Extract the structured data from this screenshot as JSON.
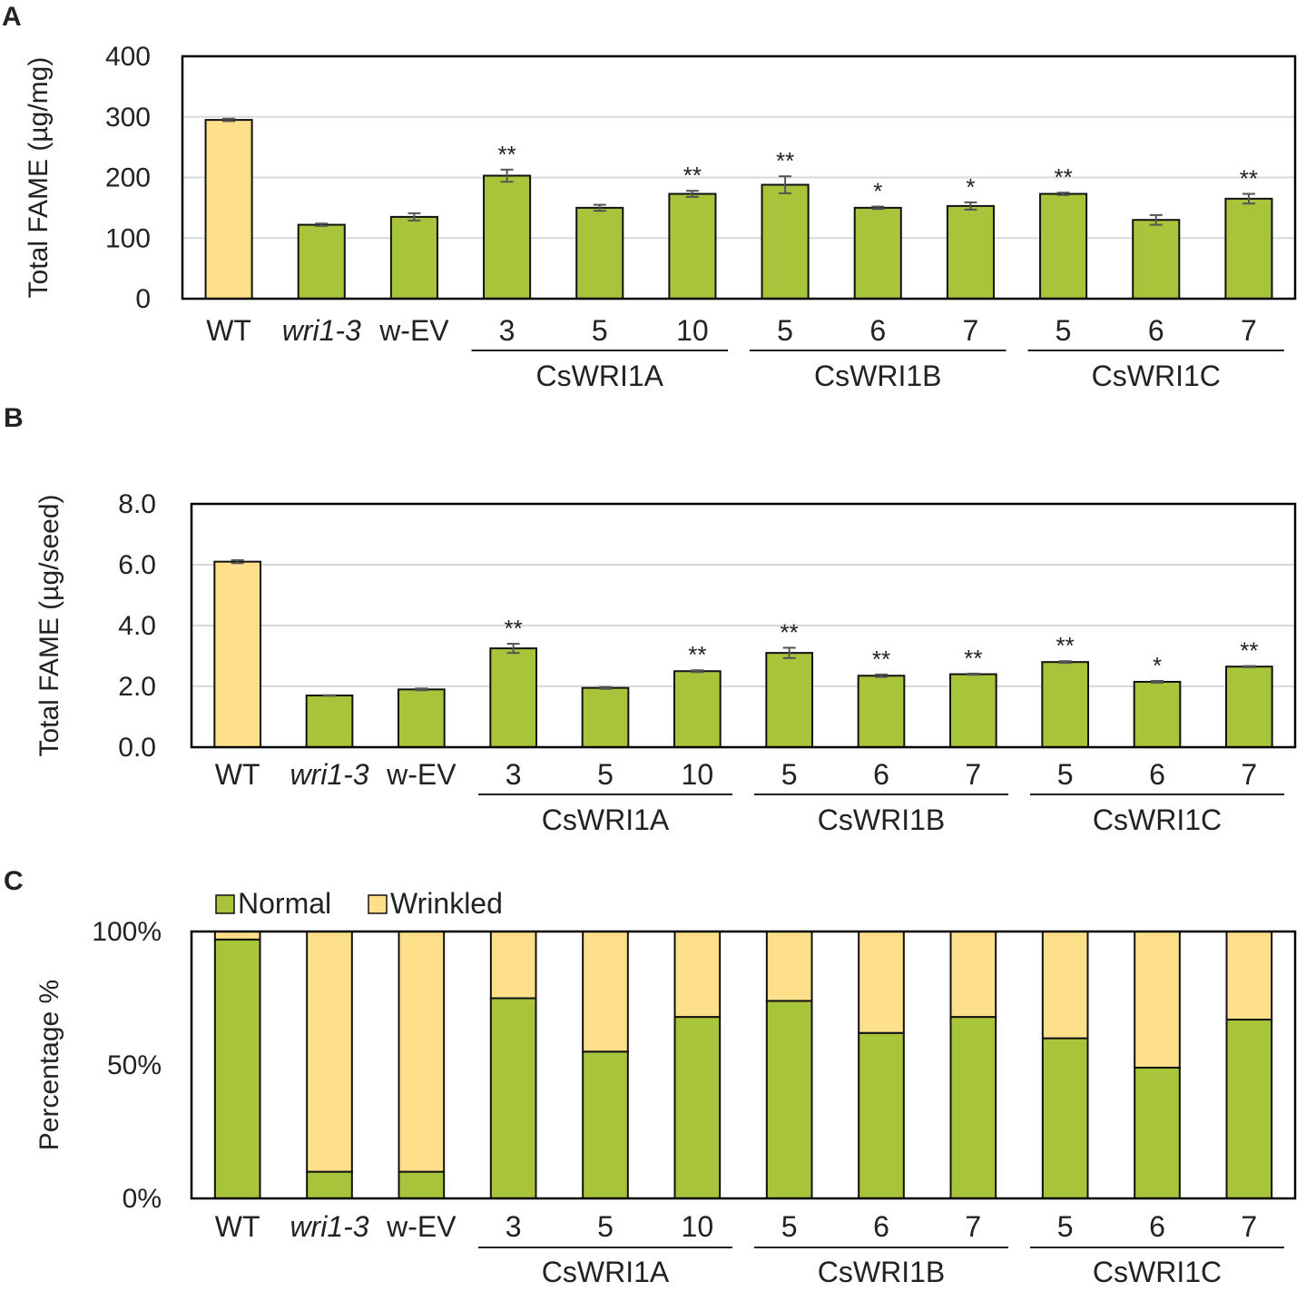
{
  "colors": {
    "green": "#a8c43a",
    "yellow": "#ffe08a",
    "grid": "#d9d9d9",
    "axis": "#000000",
    "error": "#555555"
  },
  "categories": [
    "WT",
    "wri1-3",
    "w-EV",
    "3",
    "5",
    "10",
    "5",
    "6",
    "7",
    "5",
    "6",
    "7"
  ],
  "italic_categories": [
    1
  ],
  "groups": [
    {
      "label": "CsWRI1A",
      "from": 3,
      "to": 5
    },
    {
      "label": "CsWRI1B",
      "from": 6,
      "to": 8
    },
    {
      "label": "CsWRI1C",
      "from": 9,
      "to": 11
    }
  ],
  "chart_data": [
    {
      "panel": "A",
      "type": "bar",
      "ylabel": "Total FAME (µg/mg)",
      "ylim": [
        0,
        400
      ],
      "yticks": [
        0,
        100,
        200,
        300,
        400
      ],
      "ytick_labels": [
        "0",
        "100",
        "200",
        "300",
        "400"
      ],
      "categories": [
        "WT",
        "wri1-3",
        "w-EV",
        "3",
        "5",
        "10",
        "5",
        "6",
        "7",
        "5",
        "6",
        "7"
      ],
      "values": [
        295,
        122,
        135,
        203,
        150,
        173,
        188,
        150,
        153,
        173,
        130,
        165
      ],
      "errors": [
        2,
        2,
        6,
        10,
        5,
        5,
        14,
        2,
        6,
        2,
        8,
        8
      ],
      "significance": [
        "",
        "",
        "",
        "**",
        "",
        "**",
        "**",
        "*",
        "*",
        "**",
        "",
        "**"
      ],
      "bar_colors": [
        "yellow",
        "green",
        "green",
        "green",
        "green",
        "green",
        "green",
        "green",
        "green",
        "green",
        "green",
        "green"
      ]
    },
    {
      "panel": "B",
      "type": "bar",
      "ylabel": "Total FAME (µg/seed)",
      "ylim": [
        0,
        8
      ],
      "yticks": [
        0,
        2,
        4,
        6,
        8
      ],
      "ytick_labels": [
        "0.0",
        "2.0",
        "4.0",
        "6.0",
        "8.0"
      ],
      "categories": [
        "WT",
        "wri1-3",
        "w-EV",
        "3",
        "5",
        "10",
        "5",
        "6",
        "7",
        "5",
        "6",
        "7"
      ],
      "values": [
        6.1,
        1.7,
        1.9,
        3.25,
        1.95,
        2.5,
        3.1,
        2.35,
        2.4,
        2.8,
        2.15,
        2.65
      ],
      "errors": [
        0.05,
        0.01,
        0.03,
        0.15,
        0.03,
        0.03,
        0.17,
        0.04,
        0.02,
        0.03,
        0.03,
        0.02
      ],
      "significance": [
        "",
        "",
        "",
        "**",
        "",
        "**",
        "**",
        "**",
        "**",
        "**",
        "*",
        "**"
      ],
      "bar_colors": [
        "yellow",
        "green",
        "green",
        "green",
        "green",
        "green",
        "green",
        "green",
        "green",
        "green",
        "green",
        "green"
      ]
    },
    {
      "panel": "C",
      "type": "stacked_bar",
      "ylabel": "Percentage %",
      "ylim": [
        0,
        100
      ],
      "yticks": [
        0,
        50,
        100
      ],
      "ytick_labels": [
        "0%",
        "50%",
        "100%"
      ],
      "categories": [
        "WT",
        "wri1-3",
        "w-EV",
        "3",
        "5",
        "10",
        "5",
        "6",
        "7",
        "5",
        "6",
        "7"
      ],
      "legend": {
        "position": "top-left",
        "entries": [
          "Normal",
          "Wrinkled"
        ]
      },
      "series": [
        {
          "name": "Normal",
          "color": "green",
          "values": [
            97,
            10,
            10,
            75,
            55,
            68,
            74,
            62,
            68,
            60,
            49,
            67
          ]
        },
        {
          "name": "Wrinkled",
          "color": "yellow",
          "values": [
            3,
            90,
            90,
            25,
            45,
            32,
            26,
            38,
            32,
            40,
            51,
            33
          ]
        }
      ]
    }
  ]
}
